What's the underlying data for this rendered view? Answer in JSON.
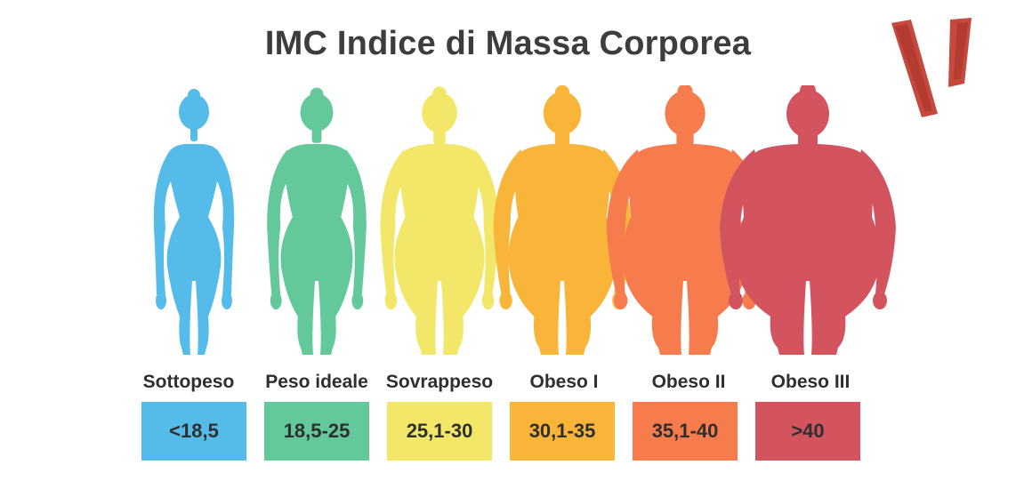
{
  "title": "IMC Indice di Massa Corporea",
  "logo_icon": "red-v-brushstroke-logo",
  "categories": [
    {
      "label": "Sottopeso",
      "range": "<18,5",
      "color": "#55bbe9",
      "build": 0.0
    },
    {
      "label": "Peso ideale",
      "range": "18,5-25",
      "color": "#63c89a",
      "build": 0.2
    },
    {
      "label": "Sovrappeso",
      "range": "25,1-30",
      "color": "#f2e768",
      "build": 0.4
    },
    {
      "label": "Obeso I",
      "range": "30,1-35",
      "color": "#f9b43a",
      "build": 0.6
    },
    {
      "label": "Obeso II",
      "range": "35,1-40",
      "color": "#f67b4d",
      "build": 0.8
    },
    {
      "label": "Obeso III",
      "range": ">40",
      "color": "#d3545f",
      "build": 1.0
    }
  ]
}
